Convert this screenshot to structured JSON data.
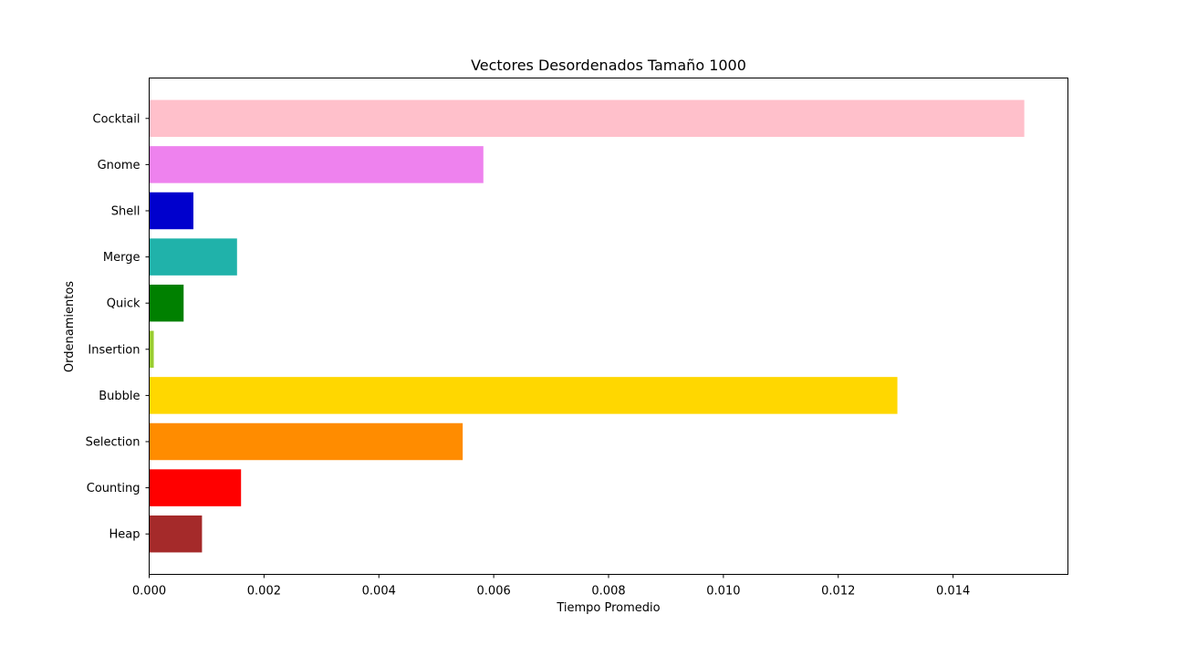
{
  "chart_data": {
    "type": "bar",
    "orientation": "horizontal",
    "title": "Vectores Desordenados Tamaño 1000",
    "xlabel": "Tiempo Promedio",
    "ylabel": "Ordenamientos",
    "categories": [
      "Heap",
      "Counting",
      "Selection",
      "Bubble",
      "Insertion",
      "Quick",
      "Merge",
      "Shell",
      "Gnome",
      "Cocktail"
    ],
    "values": [
      0.00092,
      0.0016,
      0.00546,
      0.01303,
      8e-05,
      0.0006,
      0.00153,
      0.00077,
      0.00582,
      0.01524
    ],
    "colors": [
      "#a52a2a",
      "#ff0000",
      "#ff8c00",
      "#ffd700",
      "#9acd32",
      "#008000",
      "#20b2aa",
      "#0000cd",
      "#ee82ee",
      "#ffc0cb"
    ],
    "xlim": [
      0,
      0.016
    ],
    "xticks": [
      0,
      0.002,
      0.004,
      0.006,
      0.008,
      0.01,
      0.012,
      0.014
    ],
    "xtick_labels": [
      "0.000",
      "0.002",
      "0.004",
      "0.006",
      "0.008",
      "0.010",
      "0.012",
      "0.014"
    ],
    "grid": false,
    "legend": "none"
  }
}
